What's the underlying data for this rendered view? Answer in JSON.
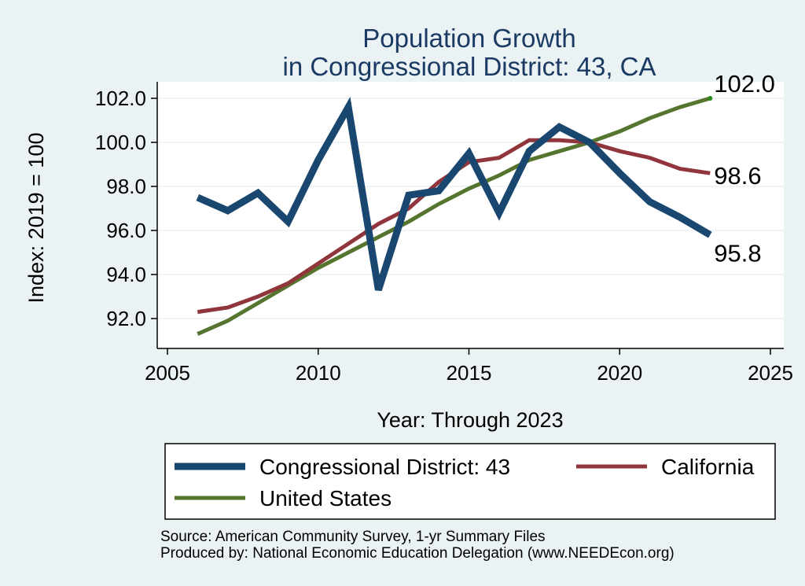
{
  "chart_data": {
    "type": "line",
    "title": [
      "Population Growth",
      "in Congressional District: 43, CA"
    ],
    "xlabel": "Year: Through 2023",
    "ylabel": "Index: 2019 = 100",
    "xlim": [
      2005,
      2025
    ],
    "ylim": [
      91.2,
      102.5
    ],
    "x_ticks": [
      2005,
      2010,
      2015,
      2020,
      2025
    ],
    "y_ticks": [
      92.0,
      94.0,
      96.0,
      98.0,
      100.0,
      102.0
    ],
    "x_tick_labels": [
      "2005",
      "2010",
      "2015",
      "2020",
      "2025"
    ],
    "y_tick_labels": [
      "92.0",
      "94.0",
      "96.0",
      "98.0",
      "100.0",
      "102.0"
    ],
    "grid": true,
    "legend_position": "bottom",
    "x": [
      2006,
      2007,
      2008,
      2009,
      2010,
      2011,
      2012,
      2013,
      2014,
      2015,
      2016,
      2017,
      2018,
      2019,
      2020,
      2021,
      2022,
      2023
    ],
    "series": [
      {
        "name": "Congressional District: 43",
        "color": "#1a476f",
        "line_weight": "thick",
        "values": [
          97.5,
          96.9,
          97.7,
          96.4,
          99.2,
          101.6,
          93.3,
          97.6,
          97.8,
          99.5,
          96.8,
          99.6,
          100.7,
          100.0,
          98.6,
          97.3,
          96.6,
          95.8
        ],
        "end_label": "95.8"
      },
      {
        "name": "California",
        "color": "#90353b",
        "line_weight": "medium",
        "values": [
          92.3,
          92.5,
          93.0,
          93.6,
          94.5,
          95.4,
          96.3,
          97.0,
          98.2,
          99.1,
          99.3,
          100.1,
          100.1,
          100.0,
          99.6,
          99.3,
          98.8,
          98.6
        ],
        "end_label": "98.6"
      },
      {
        "name": "United States",
        "color": "#55752f",
        "line_weight": "medium",
        "values": [
          91.3,
          91.9,
          92.7,
          93.5,
          94.3,
          95.0,
          95.7,
          96.4,
          97.2,
          97.9,
          98.5,
          99.2,
          99.6,
          100.0,
          100.5,
          101.1,
          101.6,
          102.0
        ],
        "end_label": "102.0"
      }
    ],
    "source_lines": [
      "Source: American Community Survey, 1-yr Summary Files",
      "Produced by: National Economic Education Delegation (www.NEEDEcon.org)"
    ]
  },
  "colors": {
    "background": "#eaf2f3",
    "plot_background": "#ffffff",
    "grid": "#eaf2f3",
    "title": "#1a3a63"
  }
}
